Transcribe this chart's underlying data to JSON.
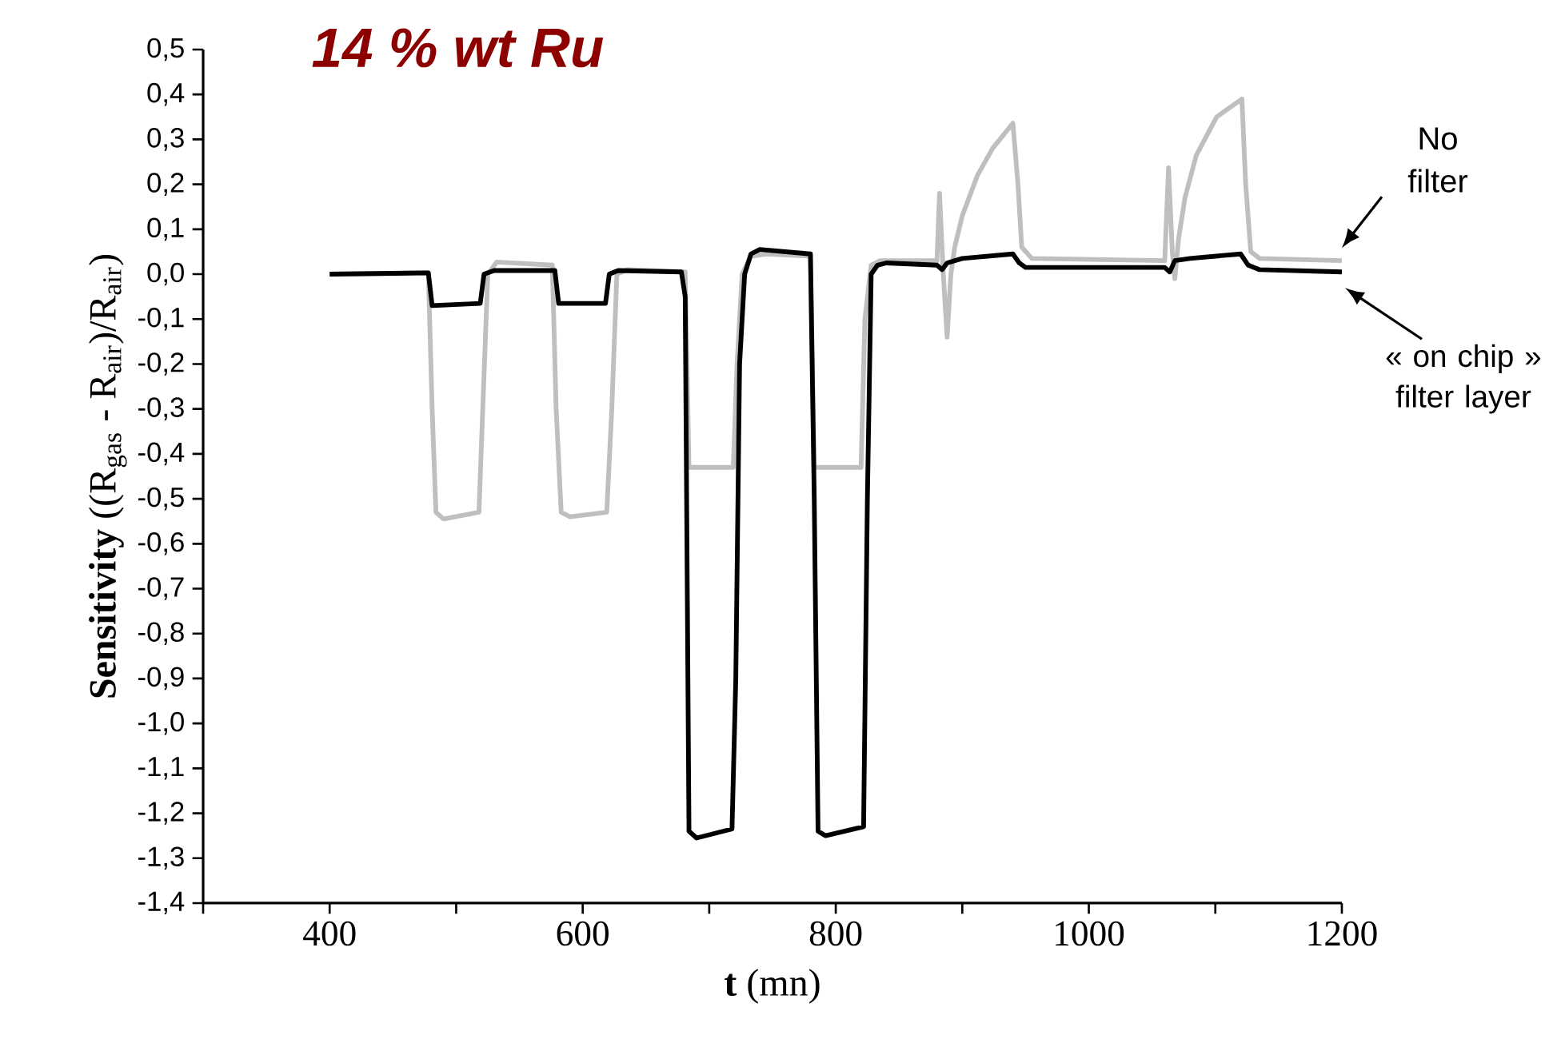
{
  "chart_data": {
    "type": "line",
    "title": "**14 % wt Ru**",
    "xlabel": "**t** (mn)",
    "ylabel": "**Sensitivity** ((R$_{gas}$ - R$_{air}$)/R$_{air}$)",
    "xlim": [
      300,
      1200
    ],
    "ylim": [
      -1.4,
      0.5
    ],
    "xticks": [
      {
        "value": 300,
        "label": null
      },
      400,
      {
        "value": 500,
        "label": null
      },
      600,
      {
        "value": 700,
        "label": null
      },
      800,
      {
        "value": 900,
        "label": null
      },
      1000,
      {
        "value": 1100,
        "label": null
      },
      1200
    ],
    "yticks": [
      {
        "value": 0.5,
        "label": "0,5"
      },
      {
        "value": 0.4,
        "label": "0,4"
      },
      {
        "value": 0.3,
        "label": "0,3"
      },
      {
        "value": 0.2,
        "label": "0,2"
      },
      {
        "value": 0.1,
        "label": "0,1"
      },
      {
        "value": 0.0,
        "label": "0,0"
      },
      {
        "value": -0.1,
        "label": "-0,1"
      },
      {
        "value": -0.2,
        "label": "-0,2"
      },
      {
        "value": -0.3,
        "label": "-0,3"
      },
      {
        "value": -0.4,
        "label": "-0,4"
      },
      {
        "value": -0.5,
        "label": "-0,5"
      },
      {
        "value": -0.6,
        "label": "-0,6"
      },
      {
        "value": -0.7,
        "label": "-0,7"
      },
      {
        "value": -0.8,
        "label": "-0,8"
      },
      {
        "value": -0.9,
        "label": "-0,9"
      },
      {
        "value": -1.0,
        "label": "-1,0"
      },
      {
        "value": -1.1,
        "label": "-1,1"
      },
      {
        "value": -1.2,
        "label": "-1,2"
      },
      {
        "value": -1.3,
        "label": "-1,3"
      },
      {
        "value": -1.4,
        "label": "-1,4"
      }
    ],
    "series": [
      {
        "name": "No filter",
        "color": "#bfbfbf",
        "x": [
          400,
          478,
          481,
          484,
          490,
          518,
          521,
          525,
          532,
          576,
          579,
          583,
          590,
          619,
          623,
          627,
          635,
          681,
          684,
          719,
          722,
          726,
          733,
          745,
          780,
          783,
          820,
          823,
          828,
          835,
          880,
          882,
          885,
          888,
          891,
          894,
          900,
          912,
          924,
          940,
          944,
          947,
          955,
          1060,
          1063,
          1066,
          1068,
          1071,
          1076,
          1085,
          1101,
          1121,
          1124,
          1128,
          1135,
          1200
        ],
        "values": [
          0.0,
          0.003,
          -0.3,
          -0.53,
          -0.545,
          -0.53,
          -0.3,
          0.0,
          0.027,
          0.02,
          -0.3,
          -0.53,
          -0.54,
          -0.53,
          -0.3,
          0.0,
          0.01,
          0.005,
          -0.43,
          -0.43,
          -0.2,
          0.0,
          0.04,
          0.045,
          0.04,
          -0.43,
          -0.43,
          -0.1,
          0.02,
          0.03,
          0.03,
          0.18,
          0.0,
          -0.14,
          0.0,
          0.06,
          0.13,
          0.22,
          0.28,
          0.336,
          0.2,
          0.06,
          0.035,
          0.03,
          0.237,
          0.05,
          -0.01,
          0.08,
          0.17,
          0.265,
          0.35,
          0.39,
          0.2,
          0.05,
          0.035,
          0.03
        ]
      },
      {
        "name": "« on chip » filter layer",
        "color": "#000000",
        "x": [
          400,
          478,
          481,
          519,
          522,
          530,
          578,
          581,
          618,
          621,
          628,
          678,
          681,
          684,
          690,
          718,
          721,
          724,
          728,
          733,
          740,
          780,
          783,
          786,
          792,
          822,
          825,
          828,
          833,
          840,
          880,
          884,
          888,
          900,
          940,
          945,
          950,
          1060,
          1064,
          1068,
          1080,
          1120,
          1126,
          1135,
          1200
        ],
        "values": [
          0.0,
          0.003,
          -0.07,
          -0.065,
          0.0,
          0.008,
          0.008,
          -0.065,
          -0.065,
          0.0,
          0.008,
          0.005,
          -0.05,
          -1.24,
          -1.255,
          -1.235,
          -0.9,
          -0.2,
          0.0,
          0.045,
          0.055,
          0.045,
          -0.5,
          -1.24,
          -1.25,
          -1.23,
          -0.5,
          0.0,
          0.02,
          0.025,
          0.02,
          0.01,
          0.025,
          0.035,
          0.045,
          0.025,
          0.015,
          0.015,
          0.005,
          0.03,
          0.035,
          0.045,
          0.02,
          0.01,
          0.005
        ]
      }
    ]
  }
}
